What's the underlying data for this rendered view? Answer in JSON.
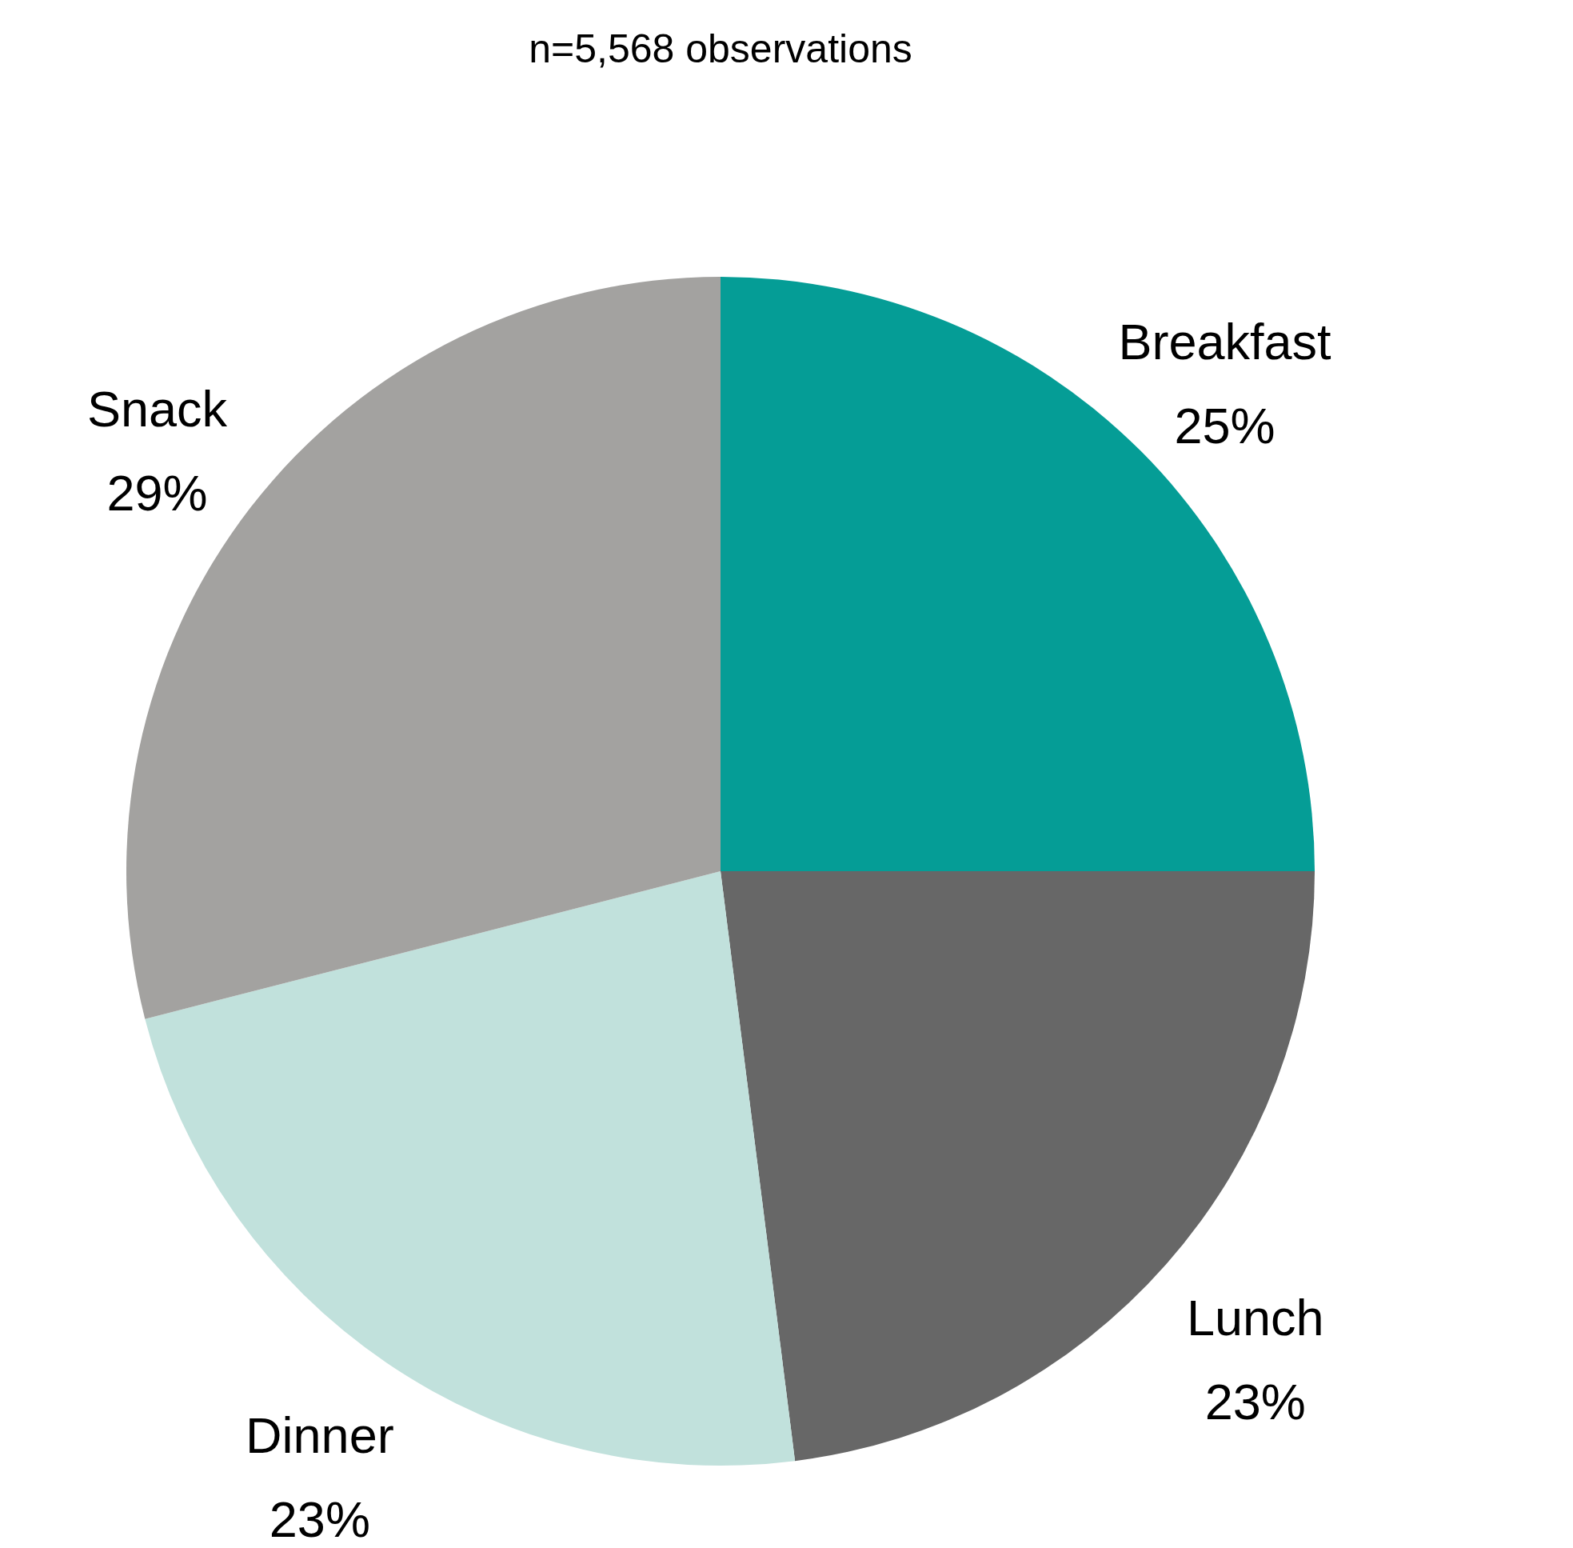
{
  "chart_data": {
    "type": "pie",
    "title": "n=5,568 observations",
    "categories": [
      "Breakfast",
      "Lunch",
      "Dinner",
      "Snack"
    ],
    "values": [
      25,
      23,
      23,
      29
    ],
    "colors": [
      "#059d96",
      "#676767",
      "#c1e1dc",
      "#a3a2a0"
    ],
    "value_labels": [
      "25%",
      "23%",
      "23%",
      "29%"
    ]
  }
}
